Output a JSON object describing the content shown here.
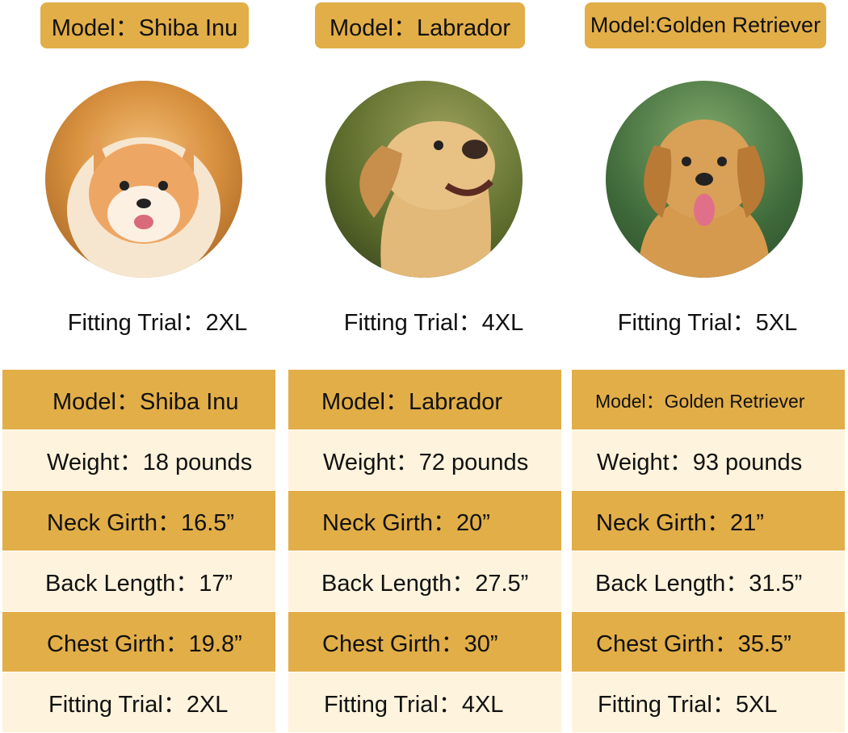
{
  "colors": {
    "gold": "#E2AE48",
    "cream": "#FEF3DC"
  },
  "dogs": [
    {
      "badge": "Model：Shiba Inu",
      "photo": "shiba-inu-photo",
      "fitting": "Fitting Trial：2XL",
      "rows": [
        "Model：Shiba Inu",
        "Weight：18 pounds",
        "Neck Girth：16.5”",
        "Back Length：17”",
        "Chest Girth：19.8”",
        "Fitting Trial：2XL"
      ]
    },
    {
      "badge": "Model：Labrador",
      "photo": "labrador-photo",
      "fitting": "Fitting Trial：4XL",
      "rows": [
        "Model：Labrador",
        "Weight：72 pounds",
        "Neck Girth：20”",
        "Back Length：27.5”",
        "Chest Girth：30”",
        "Fitting Trial：4XL"
      ]
    },
    {
      "badge": "Model:Golden Retriever",
      "photo": "golden-retriever-photo",
      "fitting": "Fitting Trial：5XL",
      "rows": [
        "Model：Golden Retriever",
        "Weight：93 pounds",
        "Neck Girth：21”",
        "Back Length：31.5”",
        "Chest Girth：35.5”",
        "Fitting Trial：5XL"
      ]
    }
  ]
}
